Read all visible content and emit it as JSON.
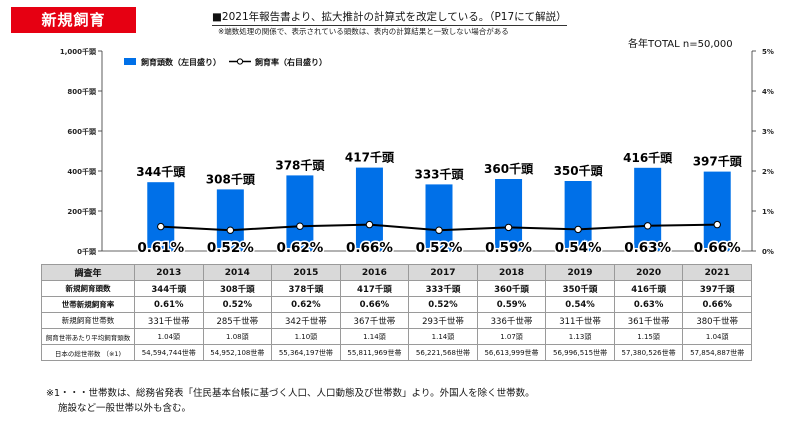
{
  "header": {
    "badge": "新規飼育",
    "note": "■2021年報告書より、拡大推計の計算式を改定している。（P17にて解説）",
    "subnote": "※端数処理の関係で、表示されている頭数は、表内の計算結果と一致しない場合がある",
    "total": "各年TOTAL n=50,000"
  },
  "chart_data": {
    "type": "bar",
    "categories": [
      "2013",
      "2014",
      "2015",
      "2016",
      "2017",
      "2018",
      "2019",
      "2020",
      "2021"
    ],
    "series": [
      {
        "name": "飼育頭数（左目盛り）",
        "type": "bar",
        "axis": "left",
        "values": [
          344,
          308,
          378,
          417,
          333,
          360,
          350,
          416,
          397
        ],
        "labels": [
          "344千頭",
          "308千頭",
          "378千頭",
          "417千頭",
          "333千頭",
          "360千頭",
          "350千頭",
          "416千頭",
          "397千頭"
        ]
      },
      {
        "name": "飼育率（右目盛り）",
        "type": "line",
        "axis": "right",
        "values": [
          0.61,
          0.52,
          0.62,
          0.66,
          0.52,
          0.59,
          0.54,
          0.63,
          0.66
        ],
        "labels": [
          "0.61%",
          "0.52%",
          "0.62%",
          "0.66%",
          "0.52%",
          "0.59%",
          "0.54%",
          "0.63%",
          "0.66%"
        ]
      }
    ],
    "yleft": {
      "ylim": [
        0,
        1000
      ],
      "ticks": [
        0,
        200,
        400,
        600,
        800,
        1000
      ],
      "tick_labels": [
        "0千頭",
        "200千頭",
        "400千頭",
        "600千頭",
        "800千頭",
        "1,000千頭"
      ]
    },
    "yright": {
      "ylim": [
        0,
        5
      ],
      "ticks": [
        0,
        1,
        2,
        3,
        4,
        5
      ],
      "tick_labels": [
        "0%",
        "1%",
        "2%",
        "3%",
        "4%",
        "5%"
      ]
    },
    "legend_position": "top-left",
    "grid": false,
    "colors": {
      "bar": "#0070e8",
      "line": "#000000",
      "marker_fill": "#ffffff"
    }
  },
  "table": {
    "header_label": "調査年",
    "years": [
      "2013",
      "2014",
      "2015",
      "2016",
      "2017",
      "2018",
      "2019",
      "2020",
      "2021"
    ],
    "rows": [
      {
        "label": "新規飼育頭数",
        "values": [
          "344千頭",
          "308千頭",
          "378千頭",
          "417千頭",
          "333千頭",
          "360千頭",
          "350千頭",
          "416千頭",
          "397千頭"
        ],
        "style": "bold"
      },
      {
        "label": "世帯新規飼育率",
        "values": [
          "0.61%",
          "0.52%",
          "0.62%",
          "0.66%",
          "0.52%",
          "0.59%",
          "0.54%",
          "0.63%",
          "0.66%"
        ],
        "style": "bold"
      },
      {
        "label": "新規飼育世帯数",
        "values": [
          "331千世帯",
          "285千世帯",
          "342千世帯",
          "367千世帯",
          "293千世帯",
          "336千世帯",
          "311千世帯",
          "361千世帯",
          "380千世帯"
        ],
        "style": "normal"
      },
      {
        "label": "飼育世帯あたり平均飼育頭数",
        "values": [
          "1.04頭",
          "1.08頭",
          "1.10頭",
          "1.14頭",
          "1.14頭",
          "1.07頭",
          "1.13頭",
          "1.15頭",
          "1.04頭"
        ],
        "style": "small"
      },
      {
        "label": "日本の総世帯数 （※1)",
        "values": [
          "54,594,744世帯",
          "54,952,108世帯",
          "55,364,197世帯",
          "55,811,969世帯",
          "56,221,568世帯",
          "56,613,999世帯",
          "56,996,515世帯",
          "57,380,526世帯",
          "57,854,887世帯"
        ],
        "style": "small"
      }
    ]
  },
  "footnote": {
    "line1": "※1・・・世帯数は、総務省発表「住民基本台帳に基づく人口、人口動態及び世帯数」より。外国人を除く世帯数。",
    "line2": "施設など一般世帯以外も含む。"
  }
}
